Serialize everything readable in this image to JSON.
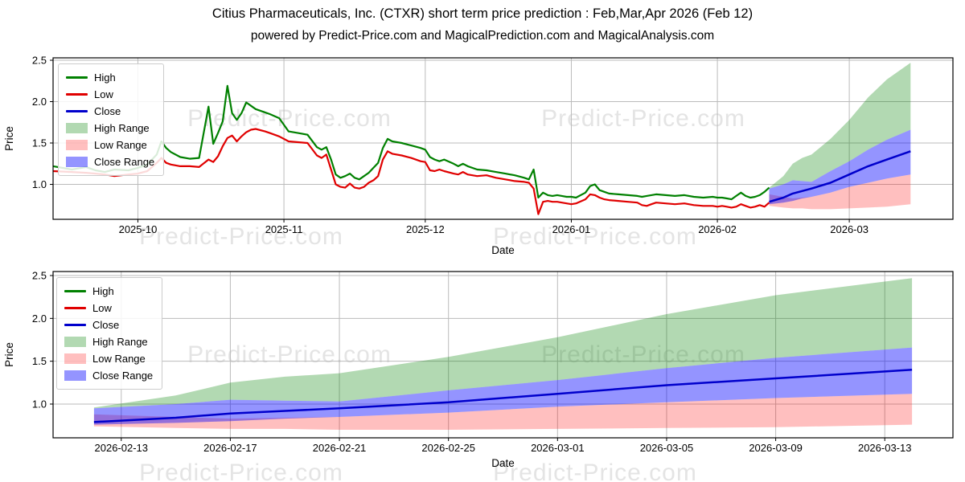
{
  "header": {
    "title": "Citius Pharmaceuticals, Inc. (CTXR) short term price prediction : Feb,Mar,Apr 2026 (Feb 12)",
    "subtitle": "powered by Predict-Price.com and MagicalPrediction.com and MagicalAnalysis.com"
  },
  "watermark": {
    "text": "Predict-Price.com",
    "color": "#e4e4e4"
  },
  "colors": {
    "high_line": "#008000",
    "low_line": "#e00000",
    "close_line": "#0000cc",
    "high_fill": "rgba(0,128,0,0.30)",
    "low_fill": "rgba(255,0,0,0.25)",
    "close_fill": "rgba(0,0,255,0.42)",
    "grid": "#bbbbbb",
    "spine": "#000000"
  },
  "legend": {
    "items": [
      {
        "label": "High",
        "type": "line",
        "color": "#008000"
      },
      {
        "label": "Low",
        "type": "line",
        "color": "#e00000"
      },
      {
        "label": "Close",
        "type": "line",
        "color": "#0000cc"
      },
      {
        "label": "High Range",
        "type": "patch",
        "color": "rgba(0,128,0,0.30)"
      },
      {
        "label": "Low Range",
        "type": "patch",
        "color": "rgba(255,0,0,0.25)"
      },
      {
        "label": "Close Range",
        "type": "patch",
        "color": "rgba(0,0,255,0.42)"
      }
    ]
  },
  "chart_data": {
    "type": "line",
    "xlabel": "Date",
    "ylabel": "Price",
    "day_zero_date": "2025-09-13",
    "history": {
      "days": [
        0,
        4,
        7,
        9,
        11,
        13,
        16,
        18,
        20,
        22,
        23,
        24,
        25,
        27,
        29,
        31,
        33,
        34,
        35,
        36,
        37,
        38,
        39,
        40,
        41,
        42,
        43,
        45,
        46,
        48,
        50,
        52,
        54,
        56,
        57,
        58,
        59,
        60,
        61,
        62,
        63,
        64,
        65,
        66,
        67,
        68,
        69,
        70,
        71,
        72,
        74,
        76,
        78,
        79,
        80,
        81,
        82,
        83,
        85,
        86,
        87,
        88,
        90,
        92,
        94,
        96,
        98,
        100,
        101,
        102,
        103,
        104,
        105,
        106,
        107,
        108,
        109,
        110,
        111,
        113,
        114,
        115,
        116,
        117,
        118,
        120,
        122,
        124,
        125,
        126,
        127,
        128,
        130,
        132,
        134,
        136,
        138,
        140,
        141,
        142,
        143,
        144,
        145,
        146,
        147,
        148,
        149,
        150,
        151,
        152
      ],
      "high": [
        1.22,
        1.18,
        1.21,
        1.17,
        1.15,
        1.18,
        1.17,
        1.2,
        1.24,
        1.36,
        1.52,
        1.44,
        1.39,
        1.33,
        1.31,
        1.32,
        1.94,
        1.49,
        1.62,
        1.76,
        2.19,
        1.86,
        1.78,
        1.86,
        1.99,
        1.95,
        1.91,
        1.87,
        1.85,
        1.8,
        1.64,
        1.62,
        1.6,
        1.45,
        1.42,
        1.45,
        1.3,
        1.12,
        1.08,
        1.1,
        1.13,
        1.08,
        1.06,
        1.1,
        1.14,
        1.2,
        1.26,
        1.44,
        1.55,
        1.52,
        1.5,
        1.47,
        1.44,
        1.42,
        1.33,
        1.3,
        1.28,
        1.3,
        1.25,
        1.22,
        1.25,
        1.22,
        1.18,
        1.17,
        1.15,
        1.13,
        1.11,
        1.08,
        1.06,
        1.18,
        0.84,
        0.9,
        0.87,
        0.86,
        0.87,
        0.86,
        0.85,
        0.85,
        0.84,
        0.9,
        0.98,
        1.0,
        0.93,
        0.91,
        0.89,
        0.88,
        0.87,
        0.86,
        0.85,
        0.86,
        0.87,
        0.88,
        0.87,
        0.86,
        0.87,
        0.85,
        0.84,
        0.85,
        0.84,
        0.84,
        0.83,
        0.82,
        0.86,
        0.9,
        0.86,
        0.84,
        0.85,
        0.87,
        0.91,
        0.96
      ],
      "low": [
        1.16,
        1.15,
        1.14,
        1.13,
        1.12,
        1.1,
        1.12,
        1.13,
        1.16,
        1.26,
        1.32,
        1.26,
        1.24,
        1.22,
        1.22,
        1.21,
        1.3,
        1.27,
        1.34,
        1.46,
        1.56,
        1.59,
        1.52,
        1.58,
        1.63,
        1.66,
        1.67,
        1.64,
        1.62,
        1.58,
        1.52,
        1.51,
        1.5,
        1.35,
        1.32,
        1.36,
        1.18,
        1.0,
        0.97,
        0.96,
        1.01,
        0.96,
        0.95,
        0.97,
        1.02,
        1.05,
        1.1,
        1.3,
        1.4,
        1.37,
        1.35,
        1.32,
        1.28,
        1.27,
        1.17,
        1.16,
        1.18,
        1.16,
        1.13,
        1.12,
        1.15,
        1.12,
        1.1,
        1.11,
        1.08,
        1.06,
        1.04,
        1.03,
        1.02,
        0.95,
        0.64,
        0.79,
        0.8,
        0.79,
        0.79,
        0.78,
        0.77,
        0.76,
        0.77,
        0.82,
        0.88,
        0.87,
        0.84,
        0.82,
        0.81,
        0.8,
        0.79,
        0.78,
        0.75,
        0.74,
        0.76,
        0.78,
        0.77,
        0.76,
        0.77,
        0.75,
        0.74,
        0.74,
        0.73,
        0.74,
        0.73,
        0.72,
        0.73,
        0.76,
        0.74,
        0.72,
        0.73,
        0.75,
        0.73,
        0.78
      ]
    },
    "prediction": {
      "days": [
        152,
        155,
        157,
        159,
        161,
        165,
        169,
        173,
        177,
        182
      ],
      "close": [
        0.79,
        0.84,
        0.89,
        0.92,
        0.95,
        1.02,
        1.12,
        1.22,
        1.3,
        1.4
      ],
      "close_min": [
        0.76,
        0.78,
        0.8,
        0.83,
        0.85,
        0.9,
        0.97,
        1.02,
        1.07,
        1.12
      ],
      "close_max": [
        0.95,
        1.0,
        1.05,
        1.04,
        1.03,
        1.16,
        1.28,
        1.42,
        1.54,
        1.66
      ],
      "high_max": [
        0.96,
        1.1,
        1.25,
        1.32,
        1.36,
        1.55,
        1.78,
        2.05,
        2.27,
        2.47
      ],
      "low_max": [
        0.88,
        0.85,
        0.83,
        0.84,
        0.85,
        0.9,
        0.97,
        1.02,
        1.07,
        1.12
      ],
      "low_min": [
        0.74,
        0.72,
        0.71,
        0.71,
        0.7,
        0.7,
        0.71,
        0.72,
        0.73,
        0.76
      ]
    },
    "charts": [
      {
        "name": "history-and-forecast",
        "show_history": true,
        "x_domain_days": [
          0,
          191
        ],
        "y_domain": [
          0.578,
          2.529
        ],
        "x_ticks": [
          {
            "day": 18,
            "label": "2025-10"
          },
          {
            "day": 49,
            "label": "2025-11"
          },
          {
            "day": 79,
            "label": "2025-12"
          },
          {
            "day": 110,
            "label": "2026-01"
          },
          {
            "day": 141,
            "label": "2026-02"
          },
          {
            "day": 169,
            "label": "2026-03"
          }
        ],
        "y_ticks": [
          1.0,
          1.5,
          2.0,
          2.5
        ]
      },
      {
        "name": "forecast-detail",
        "show_history": false,
        "x_domain_days": [
          150.5,
          183.5
        ],
        "y_domain": [
          0.606,
          2.547
        ],
        "x_ticks": [
          {
            "day": 153,
            "label": "2026-02-13"
          },
          {
            "day": 157,
            "label": "2026-02-17"
          },
          {
            "day": 161,
            "label": "2026-02-21"
          },
          {
            "day": 165,
            "label": "2026-02-25"
          },
          {
            "day": 169,
            "label": "2026-03-01"
          },
          {
            "day": 173,
            "label": "2026-03-05"
          },
          {
            "day": 177,
            "label": "2026-03-09"
          },
          {
            "day": 181,
            "label": "2026-03-13"
          }
        ],
        "y_ticks": [
          1.0,
          1.5,
          2.0,
          2.5
        ]
      }
    ]
  }
}
